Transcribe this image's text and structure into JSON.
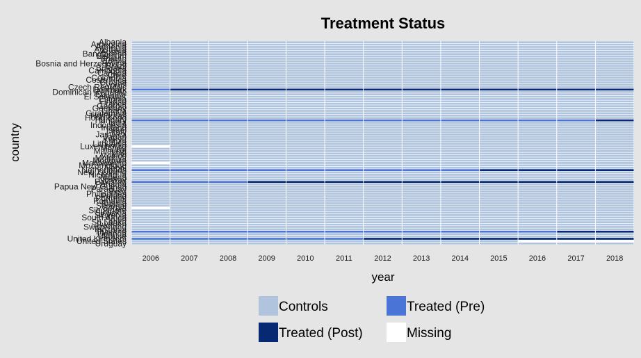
{
  "chart_data": {
    "type": "heatmap",
    "title": "Treatment Status",
    "xlabel": "year",
    "ylabel": "country",
    "years": [
      2006,
      2007,
      2008,
      2009,
      2010,
      2011,
      2012,
      2013,
      2014,
      2015,
      2016,
      2017,
      2018
    ],
    "countries": [
      "Albania",
      "Argentina",
      "Armenia",
      "Australia",
      "Austria",
      "Bangladesh",
      "Belgium",
      "Bhutan",
      "Bolivia",
      "Bosnia and Herzegovina",
      "Brazil",
      "Bulgaria",
      "Cambodia",
      "Canada",
      "Chile",
      "Colombia",
      "Costa Rica",
      "Croatia",
      "Cyprus",
      "Czech Republic",
      "Denmark",
      "Dominican Republic",
      "Ecuador",
      "El Salvador",
      "Estonia",
      "Finland",
      "France",
      "Georgia",
      "Germany",
      "Ghana",
      "Guatemala",
      "Honduras",
      "Hong Kong",
      "Hungary",
      "India",
      "Indonesia",
      "Ireland",
      "Israel",
      "Italy",
      "Jamaica",
      "Japan",
      "Kenya",
      "Latvia",
      "Lithuania",
      "Luxembourg",
      "Malawi",
      "Malaysia",
      "Mali",
      "Mexico",
      "Moldova",
      "Mongolia",
      "Montenegro",
      "Mozambique",
      "Nepal",
      "Netherlands",
      "New Zealand",
      "Nicaragua",
      "Nigeria",
      "Norway",
      "Pakistan",
      "Panama",
      "Papua New Guinea",
      "Paraguay",
      "Peru",
      "Philippines",
      "Poland",
      "Portugal",
      "Romania",
      "Russia",
      "Senegal",
      "Serbia",
      "Singapore",
      "Slovakia",
      "Slovenia",
      "South Africa",
      "Spain",
      "Sri Lanka",
      "Sweden",
      "Switzerland",
      "Tanzania",
      "Thailand",
      "Uganda",
      "Ukraine",
      "United Kingdom",
      "United States",
      "Uruguay"
    ],
    "status_labels": {
      "C": "Controls",
      "P": "Treated (Pre)",
      "T": "Treated (Post)",
      "M": "Missing"
    },
    "colors": {
      "C": "#b0c4de",
      "P": "#4a74d6",
      "T": "#072973",
      "M": "#ffffff",
      "grid": "#ffffff",
      "panel": "#e5e5e5"
    },
    "default_status": "C",
    "special_rows": [
      {
        "country": "Denmark",
        "statuses": [
          "P",
          "T",
          "T",
          "T",
          "T",
          "T",
          "T",
          "T",
          "T",
          "T",
          "T",
          "T",
          "T"
        ]
      },
      {
        "country": "Hungary",
        "statuses": [
          "P",
          "P",
          "P",
          "P",
          "P",
          "P",
          "P",
          "P",
          "P",
          "P",
          "P",
          "P",
          "T"
        ]
      },
      {
        "country": "Luxembourg",
        "statuses": [
          "M",
          "C",
          "C",
          "C",
          "C",
          "C",
          "C",
          "C",
          "C",
          "C",
          "C",
          "C",
          "C"
        ]
      },
      {
        "country": "Montenegro",
        "statuses": [
          "M",
          "C",
          "C",
          "C",
          "C",
          "C",
          "C",
          "C",
          "C",
          "C",
          "C",
          "C",
          "C"
        ]
      },
      {
        "country": "Netherlands",
        "statuses": [
          "P",
          "P",
          "P",
          "P",
          "P",
          "P",
          "P",
          "P",
          "P",
          "T",
          "T",
          "T",
          "T"
        ]
      },
      {
        "country": "Pakistan",
        "statuses": [
          "P",
          "P",
          "P",
          "T",
          "T",
          "T",
          "T",
          "T",
          "T",
          "T",
          "T",
          "T",
          "T"
        ]
      },
      {
        "country": "Serbia",
        "statuses": [
          "M",
          "C",
          "C",
          "C",
          "C",
          "C",
          "C",
          "C",
          "C",
          "C",
          "C",
          "C",
          "C"
        ]
      },
      {
        "country": "Thailand",
        "statuses": [
          "P",
          "P",
          "P",
          "P",
          "P",
          "P",
          "P",
          "P",
          "P",
          "P",
          "P",
          "T",
          "T"
        ]
      },
      {
        "country": "United Kingdom",
        "statuses": [
          "P",
          "P",
          "P",
          "P",
          "P",
          "P",
          "T",
          "T",
          "T",
          "T",
          "T",
          "T",
          "T"
        ]
      },
      {
        "country": "United States",
        "statuses": [
          "C",
          "C",
          "C",
          "C",
          "C",
          "C",
          "C",
          "C",
          "C",
          "C",
          "M",
          "M",
          "M"
        ]
      }
    ],
    "legend": {
      "position": "bottom",
      "items": [
        {
          "key": "C",
          "label": "Controls"
        },
        {
          "key": "P",
          "label": "Treated (Pre)"
        },
        {
          "key": "T",
          "label": "Treated (Post)"
        },
        {
          "key": "M",
          "label": "Missing"
        }
      ]
    }
  }
}
